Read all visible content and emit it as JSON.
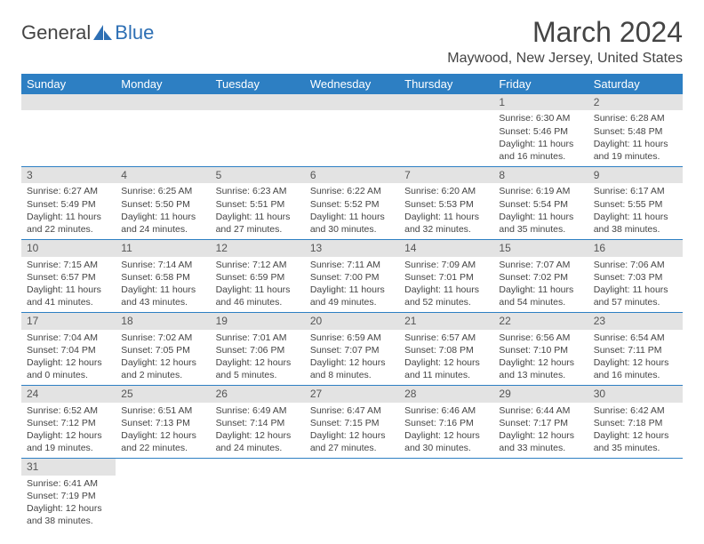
{
  "logo": {
    "text1": "General",
    "text2": "Blue"
  },
  "title": "March 2024",
  "location": "Maywood, New Jersey, United States",
  "styles": {
    "header_bg": "#2d7fc3",
    "header_text": "#ffffff",
    "daynum_bg": "#e3e3e3",
    "border_color": "#2d7fc3",
    "body_text": "#444444",
    "page_bg": "#ffffff",
    "title_fontsize": 32,
    "location_fontsize": 16,
    "header_fontsize": 13,
    "daynum_fontsize": 12,
    "content_fontsize": 10.5
  },
  "weekdays": [
    "Sunday",
    "Monday",
    "Tuesday",
    "Wednesday",
    "Thursday",
    "Friday",
    "Saturday"
  ],
  "weeks": [
    [
      null,
      null,
      null,
      null,
      null,
      {
        "n": "1",
        "sr": "Sunrise: 6:30 AM",
        "ss": "Sunset: 5:46 PM",
        "dl": "Daylight: 11 hours and 16 minutes."
      },
      {
        "n": "2",
        "sr": "Sunrise: 6:28 AM",
        "ss": "Sunset: 5:48 PM",
        "dl": "Daylight: 11 hours and 19 minutes."
      }
    ],
    [
      {
        "n": "3",
        "sr": "Sunrise: 6:27 AM",
        "ss": "Sunset: 5:49 PM",
        "dl": "Daylight: 11 hours and 22 minutes."
      },
      {
        "n": "4",
        "sr": "Sunrise: 6:25 AM",
        "ss": "Sunset: 5:50 PM",
        "dl": "Daylight: 11 hours and 24 minutes."
      },
      {
        "n": "5",
        "sr": "Sunrise: 6:23 AM",
        "ss": "Sunset: 5:51 PM",
        "dl": "Daylight: 11 hours and 27 minutes."
      },
      {
        "n": "6",
        "sr": "Sunrise: 6:22 AM",
        "ss": "Sunset: 5:52 PM",
        "dl": "Daylight: 11 hours and 30 minutes."
      },
      {
        "n": "7",
        "sr": "Sunrise: 6:20 AM",
        "ss": "Sunset: 5:53 PM",
        "dl": "Daylight: 11 hours and 32 minutes."
      },
      {
        "n": "8",
        "sr": "Sunrise: 6:19 AM",
        "ss": "Sunset: 5:54 PM",
        "dl": "Daylight: 11 hours and 35 minutes."
      },
      {
        "n": "9",
        "sr": "Sunrise: 6:17 AM",
        "ss": "Sunset: 5:55 PM",
        "dl": "Daylight: 11 hours and 38 minutes."
      }
    ],
    [
      {
        "n": "10",
        "sr": "Sunrise: 7:15 AM",
        "ss": "Sunset: 6:57 PM",
        "dl": "Daylight: 11 hours and 41 minutes."
      },
      {
        "n": "11",
        "sr": "Sunrise: 7:14 AM",
        "ss": "Sunset: 6:58 PM",
        "dl": "Daylight: 11 hours and 43 minutes."
      },
      {
        "n": "12",
        "sr": "Sunrise: 7:12 AM",
        "ss": "Sunset: 6:59 PM",
        "dl": "Daylight: 11 hours and 46 minutes."
      },
      {
        "n": "13",
        "sr": "Sunrise: 7:11 AM",
        "ss": "Sunset: 7:00 PM",
        "dl": "Daylight: 11 hours and 49 minutes."
      },
      {
        "n": "14",
        "sr": "Sunrise: 7:09 AM",
        "ss": "Sunset: 7:01 PM",
        "dl": "Daylight: 11 hours and 52 minutes."
      },
      {
        "n": "15",
        "sr": "Sunrise: 7:07 AM",
        "ss": "Sunset: 7:02 PM",
        "dl": "Daylight: 11 hours and 54 minutes."
      },
      {
        "n": "16",
        "sr": "Sunrise: 7:06 AM",
        "ss": "Sunset: 7:03 PM",
        "dl": "Daylight: 11 hours and 57 minutes."
      }
    ],
    [
      {
        "n": "17",
        "sr": "Sunrise: 7:04 AM",
        "ss": "Sunset: 7:04 PM",
        "dl": "Daylight: 12 hours and 0 minutes."
      },
      {
        "n": "18",
        "sr": "Sunrise: 7:02 AM",
        "ss": "Sunset: 7:05 PM",
        "dl": "Daylight: 12 hours and 2 minutes."
      },
      {
        "n": "19",
        "sr": "Sunrise: 7:01 AM",
        "ss": "Sunset: 7:06 PM",
        "dl": "Daylight: 12 hours and 5 minutes."
      },
      {
        "n": "20",
        "sr": "Sunrise: 6:59 AM",
        "ss": "Sunset: 7:07 PM",
        "dl": "Daylight: 12 hours and 8 minutes."
      },
      {
        "n": "21",
        "sr": "Sunrise: 6:57 AM",
        "ss": "Sunset: 7:08 PM",
        "dl": "Daylight: 12 hours and 11 minutes."
      },
      {
        "n": "22",
        "sr": "Sunrise: 6:56 AM",
        "ss": "Sunset: 7:10 PM",
        "dl": "Daylight: 12 hours and 13 minutes."
      },
      {
        "n": "23",
        "sr": "Sunrise: 6:54 AM",
        "ss": "Sunset: 7:11 PM",
        "dl": "Daylight: 12 hours and 16 minutes."
      }
    ],
    [
      {
        "n": "24",
        "sr": "Sunrise: 6:52 AM",
        "ss": "Sunset: 7:12 PM",
        "dl": "Daylight: 12 hours and 19 minutes."
      },
      {
        "n": "25",
        "sr": "Sunrise: 6:51 AM",
        "ss": "Sunset: 7:13 PM",
        "dl": "Daylight: 12 hours and 22 minutes."
      },
      {
        "n": "26",
        "sr": "Sunrise: 6:49 AM",
        "ss": "Sunset: 7:14 PM",
        "dl": "Daylight: 12 hours and 24 minutes."
      },
      {
        "n": "27",
        "sr": "Sunrise: 6:47 AM",
        "ss": "Sunset: 7:15 PM",
        "dl": "Daylight: 12 hours and 27 minutes."
      },
      {
        "n": "28",
        "sr": "Sunrise: 6:46 AM",
        "ss": "Sunset: 7:16 PM",
        "dl": "Daylight: 12 hours and 30 minutes."
      },
      {
        "n": "29",
        "sr": "Sunrise: 6:44 AM",
        "ss": "Sunset: 7:17 PM",
        "dl": "Daylight: 12 hours and 33 minutes."
      },
      {
        "n": "30",
        "sr": "Sunrise: 6:42 AM",
        "ss": "Sunset: 7:18 PM",
        "dl": "Daylight: 12 hours and 35 minutes."
      }
    ],
    [
      {
        "n": "31",
        "sr": "Sunrise: 6:41 AM",
        "ss": "Sunset: 7:19 PM",
        "dl": "Daylight: 12 hours and 38 minutes."
      },
      null,
      null,
      null,
      null,
      null,
      null
    ]
  ]
}
